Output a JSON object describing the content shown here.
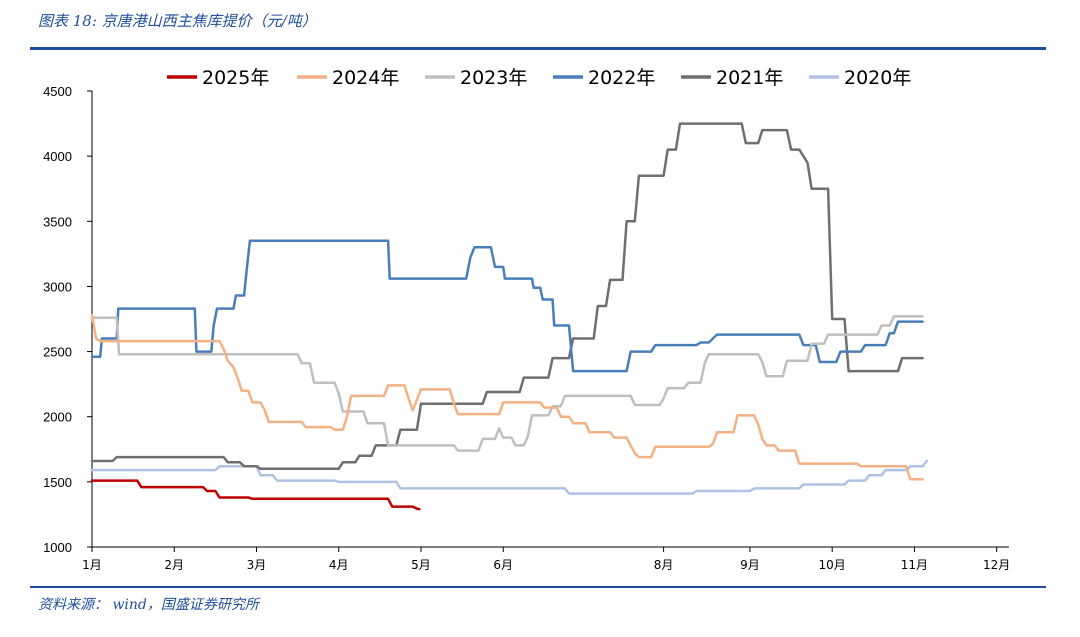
{
  "caption": "图表 18: 京唐港山西主焦库提价（元/吨）",
  "source": "资料来源： wind，国盛证券研究所",
  "colors": {
    "s2025": "#c00000",
    "s2024": "#f4b183",
    "s2023": "#bfbfbf",
    "s2022": "#4a7ebb",
    "s2021": "#6f6f6f",
    "s2020": "#adc3e4"
  },
  "chart_data": {
    "type": "line",
    "ylim": [
      1000,
      4500
    ],
    "yticks": [
      "1000",
      "1500",
      "2000",
      "2500",
      "3000",
      "3500",
      "4000",
      "4500"
    ],
    "xlim": [
      1,
      12.15
    ],
    "xticks": [
      "1月",
      "2月",
      "3月",
      "4月",
      "5月",
      "6月",
      "8月",
      "9月",
      "10月",
      "11月",
      "12月"
    ],
    "xtick_positions": [
      1,
      2,
      3,
      4,
      5,
      6,
      7.95,
      9,
      10,
      11,
      12
    ],
    "legend_position": "top",
    "series": [
      {
        "name": "2025年",
        "key": "s2025",
        "points": [
          [
            1.0,
            1510
          ],
          [
            1.55,
            1510
          ],
          [
            1.6,
            1460
          ],
          [
            2.35,
            1460
          ],
          [
            2.4,
            1430
          ],
          [
            2.5,
            1430
          ],
          [
            2.55,
            1380
          ],
          [
            2.9,
            1380
          ],
          [
            2.95,
            1370
          ],
          [
            4.6,
            1370
          ],
          [
            4.65,
            1310
          ],
          [
            4.9,
            1310
          ],
          [
            4.95,
            1295
          ],
          [
            4.98,
            1290
          ]
        ]
      },
      {
        "name": "2024年",
        "key": "s2024",
        "points": [
          [
            1.0,
            2780
          ],
          [
            1.05,
            2600
          ],
          [
            1.1,
            2580
          ],
          [
            2.55,
            2580
          ],
          [
            2.6,
            2520
          ],
          [
            2.65,
            2430
          ],
          [
            2.72,
            2380
          ],
          [
            2.78,
            2280
          ],
          [
            2.82,
            2200
          ],
          [
            2.9,
            2200
          ],
          [
            2.95,
            2110
          ],
          [
            3.05,
            2110
          ],
          [
            3.1,
            2050
          ],
          [
            3.15,
            1960
          ],
          [
            3.55,
            1960
          ],
          [
            3.6,
            1920
          ],
          [
            3.9,
            1920
          ],
          [
            3.95,
            1900
          ],
          [
            4.05,
            1900
          ],
          [
            4.1,
            2000
          ],
          [
            4.15,
            2160
          ],
          [
            4.55,
            2160
          ],
          [
            4.6,
            2240
          ],
          [
            4.8,
            2240
          ],
          [
            4.85,
            2140
          ],
          [
            4.9,
            2050
          ],
          [
            5.0,
            2210
          ],
          [
            5.35,
            2210
          ],
          [
            5.4,
            2100
          ],
          [
            5.45,
            2020
          ],
          [
            5.95,
            2020
          ],
          [
            6.0,
            2110
          ],
          [
            6.45,
            2110
          ],
          [
            6.5,
            2070
          ],
          [
            6.65,
            2070
          ],
          [
            6.7,
            2000
          ],
          [
            6.8,
            2000
          ],
          [
            6.85,
            1950
          ],
          [
            7.0,
            1950
          ],
          [
            7.05,
            1880
          ],
          [
            7.3,
            1880
          ],
          [
            7.35,
            1840
          ],
          [
            7.5,
            1840
          ],
          [
            7.55,
            1780
          ],
          [
            7.6,
            1720
          ],
          [
            7.65,
            1690
          ],
          [
            7.8,
            1690
          ],
          [
            7.85,
            1770
          ],
          [
            8.5,
            1770
          ],
          [
            8.55,
            1790
          ],
          [
            8.6,
            1880
          ],
          [
            8.8,
            1880
          ],
          [
            8.85,
            2010
          ],
          [
            9.05,
            2010
          ],
          [
            9.1,
            1940
          ],
          [
            9.15,
            1830
          ],
          [
            9.2,
            1780
          ],
          [
            9.3,
            1780
          ],
          [
            9.35,
            1740
          ],
          [
            9.55,
            1740
          ],
          [
            9.6,
            1640
          ],
          [
            10.3,
            1640
          ],
          [
            10.35,
            1620
          ],
          [
            10.9,
            1620
          ],
          [
            10.95,
            1520
          ],
          [
            11.1,
            1520
          ]
        ]
      },
      {
        "name": "2023年",
        "key": "s2023",
        "points": [
          [
            1.0,
            2760
          ],
          [
            1.3,
            2760
          ],
          [
            1.33,
            2480
          ],
          [
            3.5,
            2480
          ],
          [
            3.55,
            2410
          ],
          [
            3.65,
            2410
          ],
          [
            3.7,
            2260
          ],
          [
            3.95,
            2260
          ],
          [
            4.0,
            2180
          ],
          [
            4.05,
            2040
          ],
          [
            4.3,
            2040
          ],
          [
            4.35,
            1950
          ],
          [
            4.55,
            1950
          ],
          [
            4.6,
            1780
          ],
          [
            5.4,
            1780
          ],
          [
            5.45,
            1740
          ],
          [
            5.7,
            1740
          ],
          [
            5.75,
            1830
          ],
          [
            5.9,
            1830
          ],
          [
            5.95,
            1910
          ],
          [
            6.0,
            1840
          ],
          [
            6.1,
            1840
          ],
          [
            6.15,
            1780
          ],
          [
            6.25,
            1780
          ],
          [
            6.3,
            1850
          ],
          [
            6.35,
            2010
          ],
          [
            6.55,
            2010
          ],
          [
            6.6,
            2080
          ],
          [
            6.7,
            2080
          ],
          [
            6.75,
            2160
          ],
          [
            7.55,
            2160
          ],
          [
            7.6,
            2090
          ],
          [
            7.9,
            2090
          ],
          [
            7.95,
            2140
          ],
          [
            8.0,
            2220
          ],
          [
            8.2,
            2220
          ],
          [
            8.25,
            2260
          ],
          [
            8.4,
            2260
          ],
          [
            8.45,
            2410
          ],
          [
            8.5,
            2480
          ],
          [
            9.1,
            2480
          ],
          [
            9.15,
            2420
          ],
          [
            9.2,
            2310
          ],
          [
            9.4,
            2310
          ],
          [
            9.45,
            2430
          ],
          [
            9.7,
            2430
          ],
          [
            9.75,
            2560
          ],
          [
            9.9,
            2560
          ],
          [
            9.95,
            2630
          ],
          [
            10.55,
            2630
          ],
          [
            10.6,
            2700
          ],
          [
            10.7,
            2700
          ],
          [
            10.75,
            2770
          ],
          [
            11.1,
            2770
          ]
        ]
      },
      {
        "name": "2022年",
        "key": "s2022",
        "points": [
          [
            1.0,
            2460
          ],
          [
            1.1,
            2460
          ],
          [
            1.12,
            2600
          ],
          [
            1.3,
            2600
          ],
          [
            1.32,
            2830
          ],
          [
            2.25,
            2830
          ],
          [
            2.27,
            2500
          ],
          [
            2.45,
            2500
          ],
          [
            2.48,
            2700
          ],
          [
            2.52,
            2830
          ],
          [
            2.72,
            2830
          ],
          [
            2.75,
            2930
          ],
          [
            2.85,
            2930
          ],
          [
            2.88,
            3120
          ],
          [
            2.92,
            3350
          ],
          [
            4.6,
            3350
          ],
          [
            4.62,
            3060
          ],
          [
            5.55,
            3060
          ],
          [
            5.6,
            3220
          ],
          [
            5.65,
            3300
          ],
          [
            5.85,
            3300
          ],
          [
            5.9,
            3150
          ],
          [
            6.0,
            3150
          ],
          [
            6.02,
            3060
          ],
          [
            6.35,
            3060
          ],
          [
            6.37,
            2990
          ],
          [
            6.45,
            2990
          ],
          [
            6.48,
            2900
          ],
          [
            6.6,
            2900
          ],
          [
            6.62,
            2700
          ],
          [
            6.8,
            2700
          ],
          [
            6.85,
            2350
          ],
          [
            7.5,
            2350
          ],
          [
            7.55,
            2500
          ],
          [
            7.8,
            2500
          ],
          [
            7.85,
            2550
          ],
          [
            8.35,
            2550
          ],
          [
            8.4,
            2570
          ],
          [
            8.5,
            2570
          ],
          [
            8.55,
            2600
          ],
          [
            8.6,
            2630
          ],
          [
            9.6,
            2630
          ],
          [
            9.65,
            2550
          ],
          [
            9.8,
            2550
          ],
          [
            9.85,
            2420
          ],
          [
            10.05,
            2420
          ],
          [
            10.1,
            2500
          ],
          [
            10.35,
            2500
          ],
          [
            10.4,
            2550
          ],
          [
            10.65,
            2550
          ],
          [
            10.7,
            2640
          ],
          [
            10.75,
            2640
          ],
          [
            10.8,
            2730
          ],
          [
            11.1,
            2730
          ]
        ]
      },
      {
        "name": "2021年",
        "key": "s2021",
        "points": [
          [
            1.0,
            1660
          ],
          [
            1.25,
            1660
          ],
          [
            1.3,
            1690
          ],
          [
            2.6,
            1690
          ],
          [
            2.65,
            1650
          ],
          [
            2.8,
            1650
          ],
          [
            2.85,
            1620
          ],
          [
            3.0,
            1620
          ],
          [
            3.05,
            1600
          ],
          [
            4.0,
            1600
          ],
          [
            4.05,
            1650
          ],
          [
            4.2,
            1650
          ],
          [
            4.25,
            1700
          ],
          [
            4.4,
            1700
          ],
          [
            4.45,
            1780
          ],
          [
            4.7,
            1780
          ],
          [
            4.75,
            1900
          ],
          [
            4.95,
            1900
          ],
          [
            5.0,
            2100
          ],
          [
            5.75,
            2100
          ],
          [
            5.8,
            2190
          ],
          [
            6.2,
            2190
          ],
          [
            6.25,
            2300
          ],
          [
            6.55,
            2300
          ],
          [
            6.6,
            2450
          ],
          [
            6.8,
            2450
          ],
          [
            6.85,
            2600
          ],
          [
            7.1,
            2600
          ],
          [
            7.15,
            2850
          ],
          [
            7.25,
            2850
          ],
          [
            7.3,
            3050
          ],
          [
            7.45,
            3050
          ],
          [
            7.5,
            3500
          ],
          [
            7.6,
            3500
          ],
          [
            7.65,
            3850
          ],
          [
            7.95,
            3850
          ],
          [
            8.0,
            4050
          ],
          [
            8.1,
            4050
          ],
          [
            8.15,
            4250
          ],
          [
            8.9,
            4250
          ],
          [
            8.95,
            4100
          ],
          [
            9.1,
            4100
          ],
          [
            9.15,
            4200
          ],
          [
            9.45,
            4200
          ],
          [
            9.5,
            4050
          ],
          [
            9.6,
            4050
          ],
          [
            9.7,
            3950
          ],
          [
            9.75,
            3750
          ],
          [
            9.95,
            3750
          ],
          [
            10.0,
            2750
          ],
          [
            10.15,
            2750
          ],
          [
            10.2,
            2350
          ],
          [
            10.8,
            2350
          ],
          [
            10.85,
            2450
          ],
          [
            11.1,
            2450
          ]
        ]
      },
      {
        "name": "2020年",
        "key": "s2020",
        "points": [
          [
            1.0,
            1590
          ],
          [
            2.5,
            1590
          ],
          [
            2.55,
            1620
          ],
          [
            3.0,
            1620
          ],
          [
            3.05,
            1550
          ],
          [
            3.2,
            1550
          ],
          [
            3.25,
            1510
          ],
          [
            3.95,
            1510
          ],
          [
            4.0,
            1500
          ],
          [
            4.7,
            1500
          ],
          [
            4.75,
            1450
          ],
          [
            6.75,
            1450
          ],
          [
            6.8,
            1410
          ],
          [
            8.3,
            1410
          ],
          [
            8.35,
            1430
          ],
          [
            9.0,
            1430
          ],
          [
            9.05,
            1450
          ],
          [
            9.6,
            1450
          ],
          [
            9.65,
            1480
          ],
          [
            10.15,
            1480
          ],
          [
            10.2,
            1510
          ],
          [
            10.4,
            1510
          ],
          [
            10.45,
            1550
          ],
          [
            10.6,
            1550
          ],
          [
            10.65,
            1590
          ],
          [
            10.9,
            1590
          ],
          [
            10.95,
            1620
          ],
          [
            11.1,
            1620
          ],
          [
            11.15,
            1660
          ]
        ]
      }
    ]
  }
}
